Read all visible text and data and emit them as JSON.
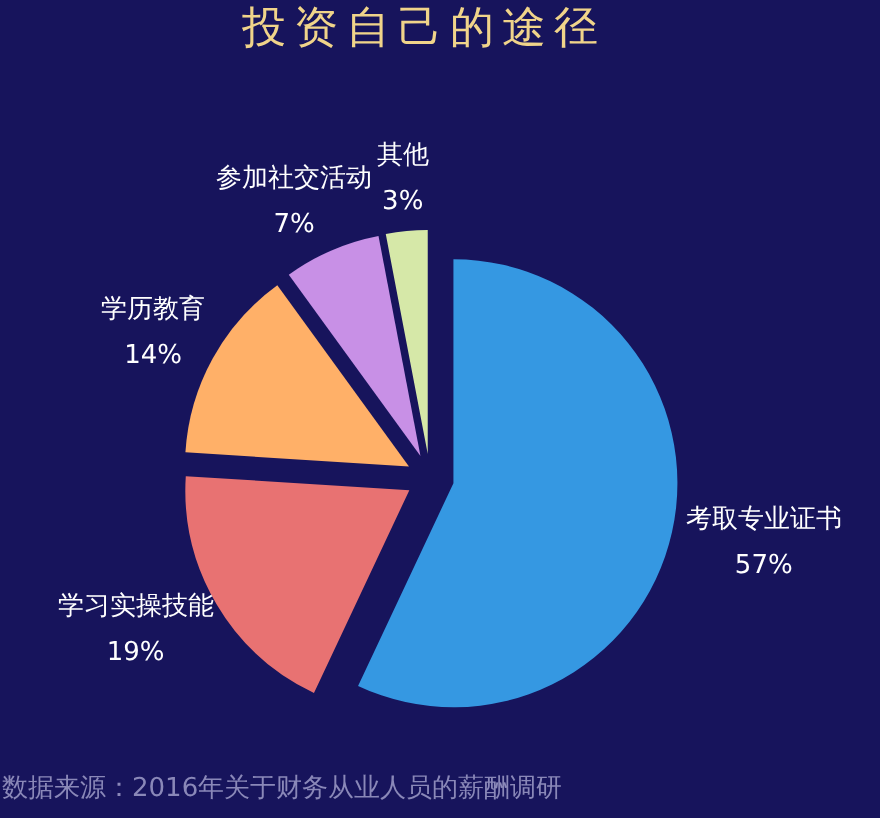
{
  "chart_data": {
    "type": "pie",
    "title": "投资自己的途径",
    "categories": [
      "考取专业证书",
      "学习实操技能",
      "学历教育",
      "参加社交活动",
      "其他"
    ],
    "values": [
      57,
      19,
      14,
      7,
      3
    ],
    "colors": [
      "#3598e2",
      "#e87272",
      "#ffb068",
      "#c890e6",
      "#d6e8a8"
    ],
    "value_labels": [
      "57%",
      "19%",
      "14%",
      "7%",
      "3%"
    ],
    "legend": false,
    "annotations": [
      "数据来源：2016年关于财务从业人员的薪酬调研"
    ]
  }
}
